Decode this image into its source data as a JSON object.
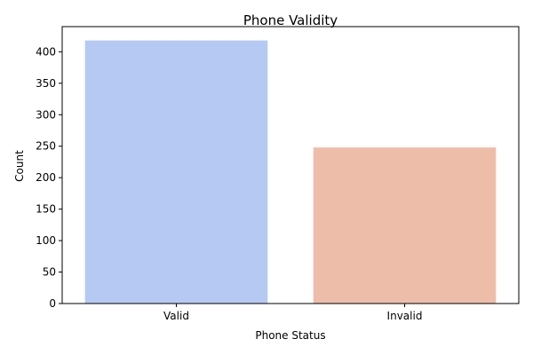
{
  "chart_data": {
    "type": "bar",
    "title": "Phone Validity",
    "xlabel": "Phone Status",
    "ylabel": "Count",
    "categories": [
      "Valid",
      "Invalid"
    ],
    "values": [
      418,
      248
    ],
    "colors": [
      "#b5c9f3",
      "#eebda9"
    ],
    "ylim": [
      0,
      440
    ],
    "yticks": [
      0,
      50,
      100,
      150,
      200,
      250,
      300,
      350,
      400
    ],
    "grid": false,
    "legend": false
  }
}
